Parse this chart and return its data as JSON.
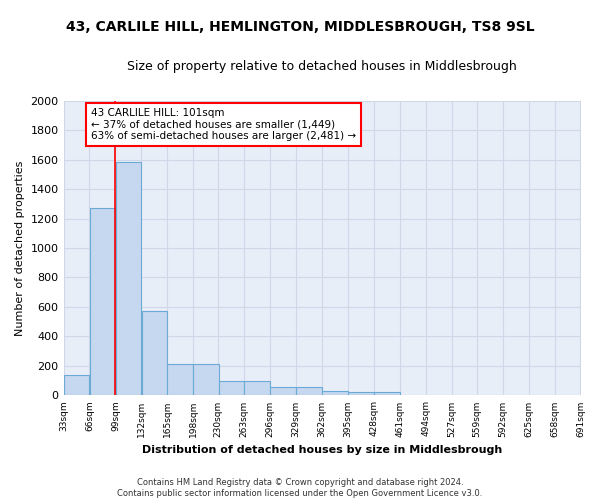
{
  "title": "43, CARLILE HILL, HEMLINGTON, MIDDLESBROUGH, TS8 9SL",
  "subtitle": "Size of property relative to detached houses in Middlesbrough",
  "xlabel": "Distribution of detached houses by size in Middlesbrough",
  "ylabel": "Number of detached properties",
  "footer": "Contains HM Land Registry data © Crown copyright and database right 2024.\nContains public sector information licensed under the Open Government Licence v3.0.",
  "bin_edges": [
    33,
    66,
    99,
    132,
    165,
    198,
    230,
    263,
    296,
    329,
    362,
    395,
    428,
    461,
    494,
    527,
    559,
    592,
    625,
    658,
    691
  ],
  "bar_heights": [
    140,
    1270,
    1580,
    570,
    215,
    215,
    100,
    100,
    55,
    55,
    30,
    25,
    25,
    0,
    0,
    0,
    0,
    0,
    0,
    0
  ],
  "bar_color": "#c5d8ef",
  "bar_edge_color": "#6aaad4",
  "background_color": "#e8eef8",
  "grid_color": "#d0d8e8",
  "fig_color": "#ffffff",
  "red_line_x": 99,
  "ylim": [
    0,
    2000
  ],
  "yticks": [
    0,
    200,
    400,
    600,
    800,
    1000,
    1200,
    1400,
    1600,
    1800,
    2000
  ],
  "annotation_text": "43 CARLILE HILL: 101sqm\n← 37% of detached houses are smaller (1,449)\n63% of semi-detached houses are larger (2,481) →",
  "title_fontsize": 10,
  "subtitle_fontsize": 9,
  "xlabel_fontsize": 8,
  "ylabel_fontsize": 8,
  "tick_labels": [
    "33sqm",
    "66sqm",
    "99sqm",
    "132sqm",
    "165sqm",
    "198sqm",
    "230sqm",
    "263sqm",
    "296sqm",
    "329sqm",
    "362sqm",
    "395sqm",
    "428sqm",
    "461sqm",
    "494sqm",
    "527sqm",
    "559sqm",
    "592sqm",
    "625sqm",
    "658sqm",
    "691sqm"
  ]
}
